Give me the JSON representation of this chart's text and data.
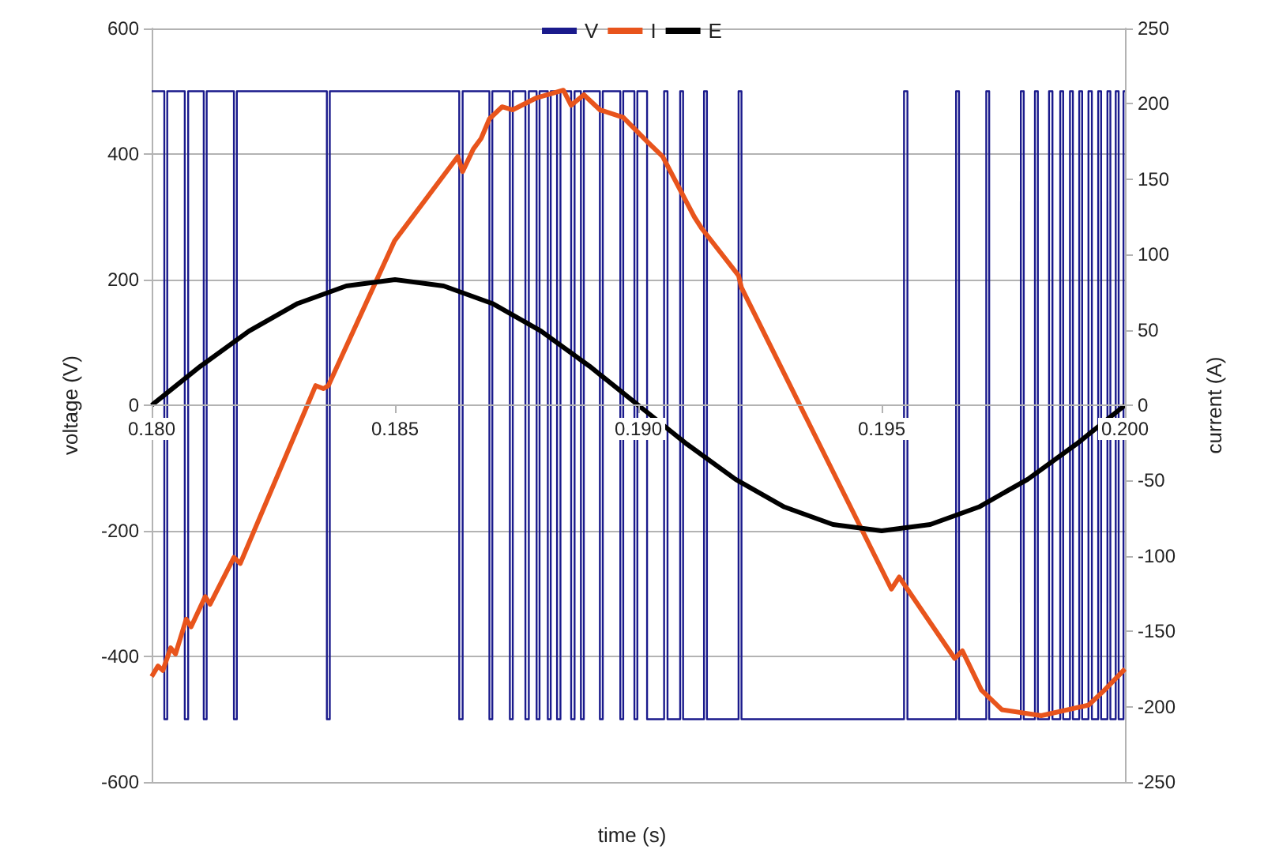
{
  "chart_data": {
    "type": "line",
    "xlabel": "time (s)",
    "ylabel": "voltage (V)",
    "y2label": "current (A)",
    "xlim": [
      0.18,
      0.2
    ],
    "xticks": [
      {
        "value": 0.18,
        "label": "0.180"
      },
      {
        "value": 0.185,
        "label": "0.185"
      },
      {
        "value": 0.19,
        "label": "0.190"
      },
      {
        "value": 0.195,
        "label": "0.195"
      },
      {
        "value": 0.2,
        "label": "0.200"
      }
    ],
    "ylim": [
      -600,
      600
    ],
    "yticks": [
      -600,
      -400,
      -200,
      0,
      200,
      400,
      600
    ],
    "y2lim": [
      -250,
      250
    ],
    "y2ticks": [
      -250,
      -200,
      -150,
      -100,
      -50,
      0,
      50,
      100,
      150,
      200,
      250
    ],
    "grid": "y",
    "legend": "top",
    "marker": "none",
    "series": [
      {
        "name": "V",
        "type": "step",
        "color": "#1a1a8c",
        "x": [
          0.18,
          0.18026,
          0.18032,
          0.18068,
          0.18075,
          0.18107,
          0.18113,
          0.18169,
          0.18175,
          0.1836,
          0.18366,
          0.18632,
          0.18639,
          0.18694,
          0.187,
          0.18736,
          0.18742,
          0.18768,
          0.18775,
          0.18791,
          0.18797,
          0.18814,
          0.1882,
          0.18833,
          0.1884,
          0.18862,
          0.18869,
          0.18882,
          0.18888,
          0.18921,
          0.18927,
          0.18963,
          0.18969,
          0.18992,
          0.18998,
          0.19018,
          0.19053,
          0.1906,
          0.19086,
          0.19092,
          0.19135,
          0.19141,
          0.19206,
          0.19212,
          0.19546,
          0.19553,
          0.19653,
          0.19659,
          0.19715,
          0.19721,
          0.19786,
          0.19792,
          0.19815,
          0.19821,
          0.19844,
          0.19851,
          0.19867,
          0.19873,
          0.19887,
          0.19893,
          0.19906,
          0.19912,
          0.19925,
          0.19932,
          0.19945,
          0.19951,
          0.19964,
          0.1997,
          0.19981,
          0.19987,
          0.19997,
          0.2
        ],
        "values": [
          500,
          -500,
          500,
          -500,
          500,
          -500,
          500,
          -500,
          500,
          -500,
          500,
          -500,
          500,
          -500,
          500,
          -500,
          500,
          -500,
          500,
          -500,
          500,
          -500,
          500,
          -500,
          500,
          -500,
          500,
          -500,
          500,
          -500,
          500,
          -500,
          500,
          -500,
          500,
          -500,
          500,
          -500,
          500,
          -500,
          500,
          -500,
          500,
          -500,
          500,
          -500,
          500,
          -500,
          500,
          -500,
          500,
          -500,
          500,
          -500,
          500,
          -500,
          500,
          -500,
          500,
          -500,
          500,
          -500,
          500,
          -500,
          500,
          -500,
          500,
          -500,
          500,
          -500,
          500,
          500
        ]
      },
      {
        "name": "I",
        "type": "line",
        "axis": "y2",
        "color": "#e8541c",
        "x": [
          0.18,
          0.18013,
          0.18023,
          0.18039,
          0.18049,
          0.18071,
          0.18081,
          0.1811,
          0.1812,
          0.18169,
          0.18182,
          0.18337,
          0.18353,
          0.18363,
          0.18499,
          0.18629,
          0.18639,
          0.18661,
          0.18677,
          0.18694,
          0.1872,
          0.18742,
          0.18791,
          0.18846,
          0.18862,
          0.18888,
          0.18921,
          0.18969,
          0.19018,
          0.1905,
          0.19115,
          0.19131,
          0.19206,
          0.19212,
          0.1952,
          0.19536,
          0.1965,
          0.19666,
          0.19705,
          0.19747,
          0.19828,
          0.19925,
          0.19958,
          0.2
        ],
        "values": [
          -180,
          -173,
          -176,
          -161,
          -165,
          -142,
          -147,
          -127,
          -132,
          -101,
          -105,
          13,
          11,
          13,
          109,
          165,
          155,
          170,
          177,
          190,
          198,
          196,
          204,
          209,
          199,
          206,
          196,
          191,
          175,
          165,
          125,
          117,
          86,
          78,
          -122,
          -114,
          -168,
          -163,
          -189,
          -202,
          -206,
          -199,
          -189,
          -175
        ]
      },
      {
        "name": "E",
        "type": "line",
        "color": "#000000",
        "x": [
          0.18,
          0.181,
          0.182,
          0.183,
          0.184,
          0.185,
          0.186,
          0.187,
          0.188,
          0.189,
          0.19,
          0.191,
          0.192,
          0.193,
          0.194,
          0.195,
          0.196,
          0.197,
          0.198,
          0.199,
          0.2
        ],
        "values": [
          0,
          62,
          118,
          162,
          190,
          200,
          190,
          162,
          118,
          62,
          0,
          -62,
          -118,
          -162,
          -190,
          -200,
          -190,
          -162,
          -118,
          -62,
          0
        ]
      }
    ]
  }
}
